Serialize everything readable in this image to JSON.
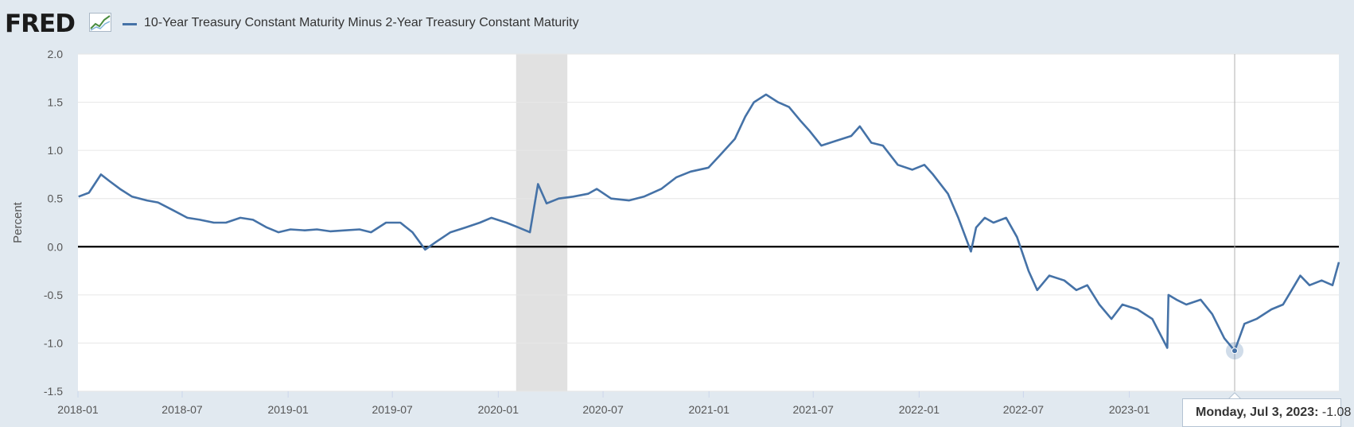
{
  "header": {
    "logo_text": "FRED",
    "graph_icon": "line-chart-icon",
    "series_label": "10-Year Treasury Constant Maturity Minus 2-Year Treasury Constant Maturity"
  },
  "colors": {
    "background": "#e1e9f0",
    "plot_background": "#ffffff",
    "series": "#4572a7",
    "recession": "#e1e1e1",
    "zero_line": "#000000",
    "grid": "#e6e6e6"
  },
  "tooltip": {
    "date": "Monday, Jul 3, 2023:",
    "value": "-1.08"
  },
  "chart_data": {
    "type": "line",
    "title": "",
    "xlabel": "",
    "ylabel": "Percent",
    "ylim": [
      -1.5,
      2.0
    ],
    "xlim": [
      "2018-01-01",
      "2023-12-31"
    ],
    "yticks": [
      "2.0",
      "1.5",
      "1.0",
      "0.5",
      "0.0",
      "-0.5",
      "-1.0",
      "-1.5"
    ],
    "xticks": [
      "2018-01",
      "2018-07",
      "2019-01",
      "2019-07",
      "2020-01",
      "2020-07",
      "2021-01",
      "2021-07",
      "2022-01",
      "2022-07",
      "2023-01"
    ],
    "grid": true,
    "reference_line": 0.0,
    "recession_band": [
      "2020-02-01",
      "2020-04-30"
    ],
    "highlight_point": {
      "x": "2023-07-03",
      "y": -1.08
    },
    "series": [
      {
        "name": "10-Year Treasury Constant Maturity Minus 2-Year Treasury Constant Maturity",
        "x": [
          "2018-01-02",
          "2018-01-20",
          "2018-02-10",
          "2018-02-25",
          "2018-03-15",
          "2018-04-05",
          "2018-05-01",
          "2018-05-20",
          "2018-06-15",
          "2018-07-10",
          "2018-08-01",
          "2018-08-25",
          "2018-09-15",
          "2018-10-10",
          "2018-11-01",
          "2018-11-25",
          "2018-12-15",
          "2019-01-05",
          "2019-01-30",
          "2019-02-20",
          "2019-03-15",
          "2019-04-10",
          "2019-05-05",
          "2019-05-25",
          "2019-06-20",
          "2019-07-15",
          "2019-08-05",
          "2019-08-27",
          "2019-09-15",
          "2019-10-10",
          "2019-11-05",
          "2019-11-30",
          "2019-12-20",
          "2020-01-15",
          "2020-02-05",
          "2020-02-25",
          "2020-03-10",
          "2020-03-25",
          "2020-04-15",
          "2020-05-10",
          "2020-06-05",
          "2020-06-20",
          "2020-07-15",
          "2020-08-15",
          "2020-09-10",
          "2020-10-10",
          "2020-11-05",
          "2020-11-30",
          "2020-12-31",
          "2021-01-20",
          "2021-02-15",
          "2021-03-05",
          "2021-03-20",
          "2021-04-10",
          "2021-05-01",
          "2021-05-20",
          "2021-06-10",
          "2021-06-25",
          "2021-07-15",
          "2021-08-10",
          "2021-09-05",
          "2021-09-20",
          "2021-10-10",
          "2021-10-30",
          "2021-11-25",
          "2021-12-20",
          "2022-01-10",
          "2022-01-25",
          "2022-02-20",
          "2022-03-10",
          "2022-04-01",
          "2022-04-10",
          "2022-04-25",
          "2022-05-10",
          "2022-06-01",
          "2022-06-20",
          "2022-07-10",
          "2022-07-25",
          "2022-08-15",
          "2022-09-10",
          "2022-10-01",
          "2022-10-20",
          "2022-11-10",
          "2022-12-01",
          "2022-12-20",
          "2023-01-15",
          "2023-02-10",
          "2023-03-08",
          "2023-03-10",
          "2023-03-24",
          "2023-04-10",
          "2023-05-05",
          "2023-05-25",
          "2023-06-15",
          "2023-07-03",
          "2023-07-20",
          "2023-08-10",
          "2023-09-05",
          "2023-09-25",
          "2023-10-10",
          "2023-10-25",
          "2023-11-10",
          "2023-12-01",
          "2023-12-20",
          "2023-12-31"
        ],
        "values": [
          0.52,
          0.56,
          0.75,
          0.68,
          0.6,
          0.52,
          0.48,
          0.46,
          0.38,
          0.3,
          0.28,
          0.25,
          0.25,
          0.3,
          0.28,
          0.2,
          0.15,
          0.18,
          0.17,
          0.18,
          0.16,
          0.17,
          0.18,
          0.15,
          0.25,
          0.25,
          0.15,
          -0.03,
          0.05,
          0.15,
          0.2,
          0.25,
          0.3,
          0.25,
          0.2,
          0.15,
          0.65,
          0.45,
          0.5,
          0.52,
          0.55,
          0.6,
          0.5,
          0.48,
          0.52,
          0.6,
          0.72,
          0.78,
          0.82,
          0.95,
          1.12,
          1.35,
          1.5,
          1.58,
          1.5,
          1.45,
          1.3,
          1.2,
          1.05,
          1.1,
          1.15,
          1.25,
          1.08,
          1.05,
          0.85,
          0.8,
          0.85,
          0.75,
          0.55,
          0.3,
          -0.05,
          0.2,
          0.3,
          0.25,
          0.3,
          0.1,
          -0.25,
          -0.45,
          -0.3,
          -0.35,
          -0.45,
          -0.4,
          -0.6,
          -0.75,
          -0.6,
          -0.65,
          -0.75,
          -1.05,
          -0.5,
          -0.55,
          -0.6,
          -0.55,
          -0.7,
          -0.95,
          -1.08,
          -0.8,
          -0.75,
          -0.65,
          -0.6,
          -0.45,
          -0.3,
          -0.4,
          -0.35,
          -0.4,
          -0.16
        ]
      }
    ]
  }
}
